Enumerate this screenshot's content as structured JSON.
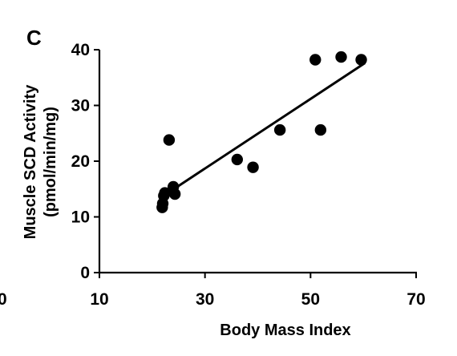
{
  "panel_label": "C",
  "edge_fragment": "0",
  "chart_data": {
    "type": "scatter",
    "xlabel": "Body Mass Index",
    "ylabel_line1": "Muscle SCD Activity",
    "ylabel_line2": "(pmol/min/mg)",
    "xlim": [
      10,
      70
    ],
    "ylim": [
      0,
      40
    ],
    "x_ticks": [
      10,
      30,
      50,
      70
    ],
    "y_ticks": [
      0,
      10,
      20,
      30,
      40
    ],
    "grid": false,
    "legend": "none",
    "point_color": "#000000",
    "points": [
      {
        "x": 21.9,
        "y": 11.7
      },
      {
        "x": 22.0,
        "y": 12.4
      },
      {
        "x": 22.2,
        "y": 13.8
      },
      {
        "x": 22.4,
        "y": 14.3
      },
      {
        "x": 23.2,
        "y": 23.8
      },
      {
        "x": 24.0,
        "y": 15.4
      },
      {
        "x": 24.3,
        "y": 14.1
      },
      {
        "x": 36.1,
        "y": 20.3
      },
      {
        "x": 39.1,
        "y": 18.9
      },
      {
        "x": 44.2,
        "y": 25.6
      },
      {
        "x": 50.9,
        "y": 38.2
      },
      {
        "x": 51.9,
        "y": 25.6
      },
      {
        "x": 55.8,
        "y": 38.7
      },
      {
        "x": 59.6,
        "y": 38.2
      }
    ],
    "trendline": {
      "x": [
        23.3,
        60.3
      ],
      "y": [
        14.5,
        37.6
      ]
    }
  }
}
